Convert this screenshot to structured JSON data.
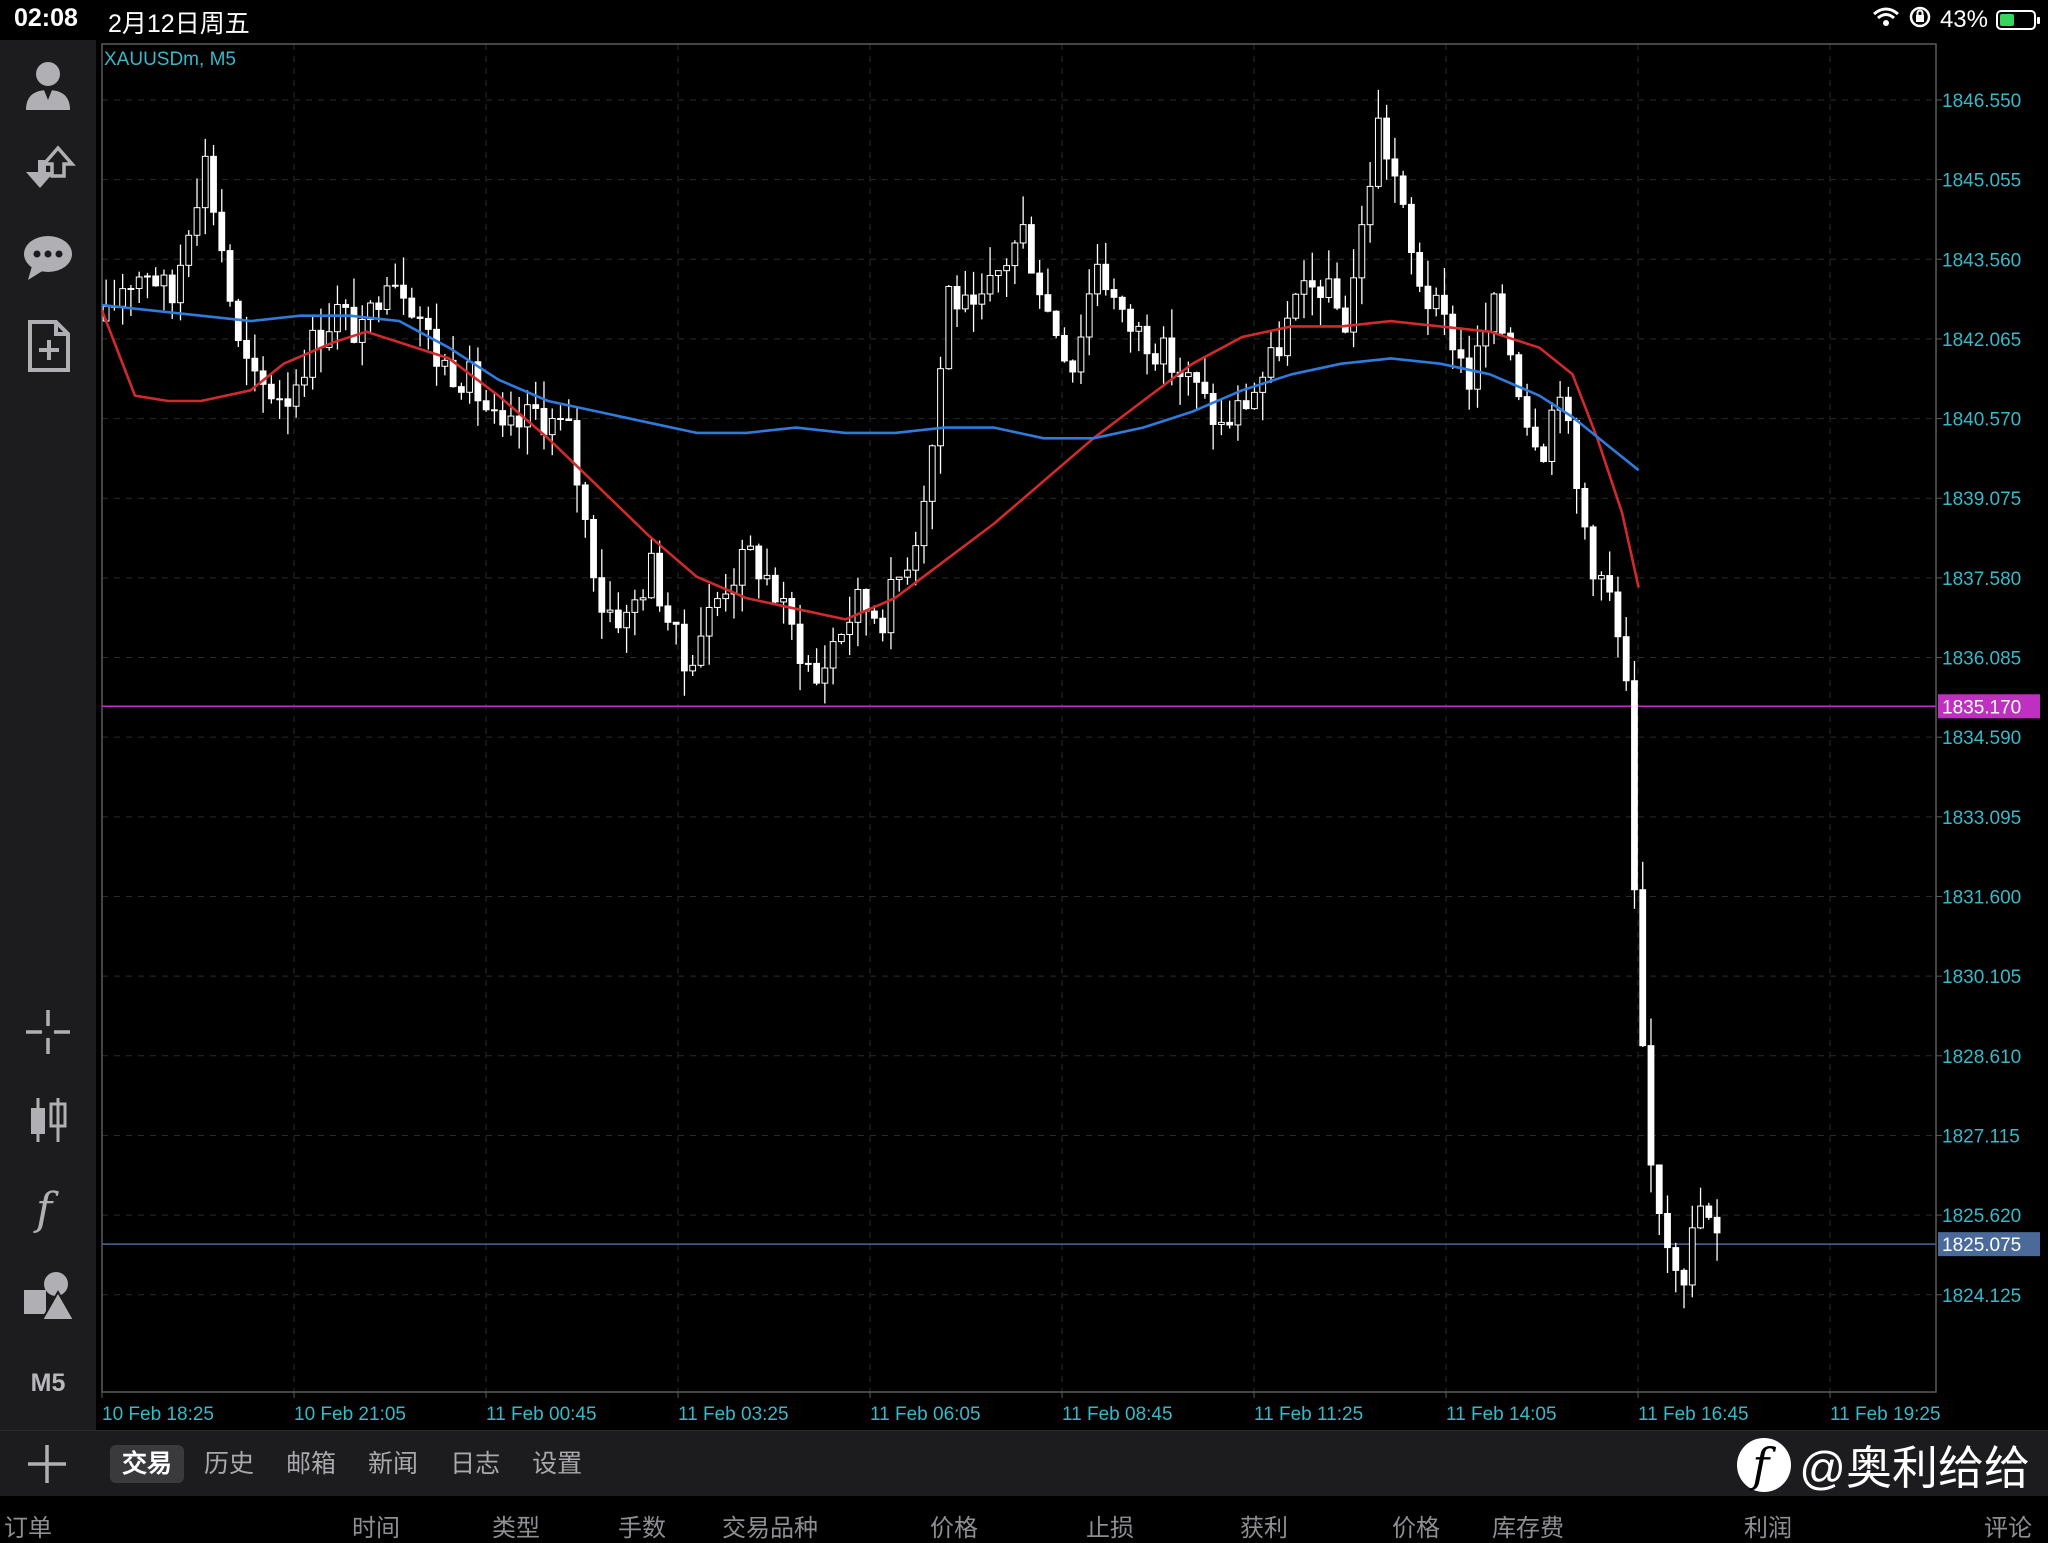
{
  "status_bar": {
    "time": "02:08",
    "date": "2月12日周五",
    "battery": "43%",
    "battery_level": 0.43
  },
  "toolbar": {
    "items": [
      "account-icon",
      "trade-icon",
      "chat-icon",
      "new-order-icon",
      "crosshair-icon",
      "candlestick-icon",
      "indicators-icon",
      "objects-icon"
    ],
    "timeframe": "M5"
  },
  "chart": {
    "symbol_label": "XAUUSDm, M5",
    "colors": {
      "background": "#000000",
      "candles": "#ffffff",
      "ma_red": "#d12a2a",
      "ma_blue": "#2f7bdc",
      "axis_text": "#38b8c8",
      "level_line": "#c030c0",
      "bid_line": "#4a6a9a",
      "grid": "#2a2a2a"
    },
    "y_ticks": [
      "1846.550",
      "1845.055",
      "1843.560",
      "1842.065",
      "1840.570",
      "1839.075",
      "1837.580",
      "1836.085",
      "1834.590",
      "1833.095",
      "1831.600",
      "1830.105",
      "1828.610",
      "1827.115",
      "1825.620",
      "1824.125"
    ],
    "x_ticks": [
      "10 Feb 18:25",
      "10 Feb 21:05",
      "11 Feb 00:45",
      "11 Feb 03:25",
      "11 Feb 06:05",
      "11 Feb 08:45",
      "11 Feb 11:25",
      "11 Feb 14:05",
      "11 Feb 16:45",
      "11 Feb 19:25"
    ],
    "level_price": "1835.170",
    "bid_price": "1825.075"
  },
  "chart_data": {
    "type": "candlestick",
    "symbol": "XAUUSDm",
    "timeframe": "M5",
    "ylim": [
      1822.3,
      1847.6
    ],
    "x_labels": [
      "10 Feb 18:25",
      "10 Feb 21:05",
      "11 Feb 00:45",
      "11 Feb 03:25",
      "11 Feb 06:05",
      "11 Feb 08:45",
      "11 Feb 11:25",
      "11 Feb 14:05",
      "11 Feb 16:45",
      "11 Feb 19:25"
    ],
    "close_path": [
      [
        0,
        1842.4
      ],
      [
        2,
        1843.1
      ],
      [
        5,
        1843.4
      ],
      [
        8,
        1842.8
      ],
      [
        10,
        1844.3
      ],
      [
        12,
        1845.4
      ],
      [
        14,
        1843.8
      ],
      [
        16,
        1841.9
      ],
      [
        18,
        1841.2
      ],
      [
        22,
        1841.0
      ],
      [
        25,
        1842.0
      ],
      [
        28,
        1842.6
      ],
      [
        31,
        1842.1
      ],
      [
        34,
        1843.4
      ],
      [
        36,
        1843.1
      ],
      [
        38,
        1842.5
      ],
      [
        40,
        1841.7
      ],
      [
        44,
        1841.3
      ],
      [
        48,
        1840.2
      ],
      [
        52,
        1840.7
      ],
      [
        56,
        1840.3
      ],
      [
        58,
        1838.6
      ],
      [
        60,
        1837.1
      ],
      [
        63,
        1836.8
      ],
      [
        66,
        1837.8
      ],
      [
        70,
        1835.9
      ],
      [
        72,
        1836.6
      ],
      [
        75,
        1837.5
      ],
      [
        78,
        1838.0
      ],
      [
        80,
        1837.6
      ],
      [
        83,
        1836.6
      ],
      [
        86,
        1835.6
      ],
      [
        88,
        1836.4
      ],
      [
        91,
        1837.1
      ],
      [
        94,
        1836.9
      ],
      [
        96,
        1837.6
      ],
      [
        98,
        1838.4
      ],
      [
        100,
        1840.1
      ],
      [
        102,
        1843.0
      ],
      [
        105,
        1842.4
      ],
      [
        108,
        1843.3
      ],
      [
        111,
        1844.1
      ],
      [
        114,
        1842.6
      ],
      [
        117,
        1841.6
      ],
      [
        120,
        1843.6
      ],
      [
        123,
        1842.4
      ],
      [
        126,
        1842.1
      ],
      [
        129,
        1841.6
      ],
      [
        132,
        1841.1
      ],
      [
        135,
        1840.4
      ],
      [
        138,
        1840.9
      ],
      [
        141,
        1841.6
      ],
      [
        144,
        1842.7
      ],
      [
        147,
        1843.1
      ],
      [
        150,
        1842.4
      ],
      [
        152,
        1844.1
      ],
      [
        154,
        1846.1
      ],
      [
        156,
        1845.1
      ],
      [
        158,
        1843.6
      ],
      [
        160,
        1842.8
      ],
      [
        163,
        1842.1
      ],
      [
        165,
        1841.3
      ],
      [
        168,
        1842.6
      ],
      [
        170,
        1841.9
      ],
      [
        172,
        1840.6
      ],
      [
        174,
        1840.1
      ],
      [
        176,
        1841.3
      ],
      [
        178,
        1839.2
      ],
      [
        180,
        1837.9
      ],
      [
        182,
        1837.2
      ],
      [
        183,
        1836.4
      ],
      [
        184,
        1835.4
      ],
      [
        185,
        1831.5
      ],
      [
        186,
        1828.5
      ],
      [
        187,
        1826.5
      ],
      [
        189,
        1825.2
      ],
      [
        191,
        1824.6
      ],
      [
        193,
        1825.8
      ],
      [
        195,
        1825.1
      ]
    ],
    "series": [
      {
        "name": "MA red",
        "points": [
          [
            0,
            1842.6
          ],
          [
            4,
            1841.0
          ],
          [
            8,
            1840.9
          ],
          [
            12,
            1840.9
          ],
          [
            18,
            1841.1
          ],
          [
            22,
            1841.6
          ],
          [
            28,
            1842.0
          ],
          [
            32,
            1842.2
          ],
          [
            36,
            1842.0
          ],
          [
            42,
            1841.7
          ],
          [
            48,
            1841.0
          ],
          [
            54,
            1840.2
          ],
          [
            60,
            1839.3
          ],
          [
            66,
            1838.4
          ],
          [
            72,
            1837.6
          ],
          [
            78,
            1837.2
          ],
          [
            84,
            1837.0
          ],
          [
            90,
            1836.8
          ],
          [
            96,
            1837.2
          ],
          [
            102,
            1837.9
          ],
          [
            108,
            1838.6
          ],
          [
            114,
            1839.4
          ],
          [
            120,
            1840.2
          ],
          [
            126,
            1840.9
          ],
          [
            132,
            1841.6
          ],
          [
            138,
            1842.1
          ],
          [
            144,
            1842.3
          ],
          [
            150,
            1842.3
          ],
          [
            156,
            1842.4
          ],
          [
            162,
            1842.3
          ],
          [
            168,
            1842.2
          ],
          [
            174,
            1841.9
          ],
          [
            178,
            1841.4
          ],
          [
            181,
            1840.2
          ],
          [
            184,
            1838.8
          ],
          [
            186,
            1837.4
          ]
        ]
      },
      {
        "name": "MA blue",
        "points": [
          [
            0,
            1842.7
          ],
          [
            6,
            1842.6
          ],
          [
            12,
            1842.5
          ],
          [
            18,
            1842.4
          ],
          [
            24,
            1842.5
          ],
          [
            30,
            1842.5
          ],
          [
            36,
            1842.4
          ],
          [
            42,
            1841.9
          ],
          [
            48,
            1841.3
          ],
          [
            54,
            1840.9
          ],
          [
            60,
            1840.7
          ],
          [
            66,
            1840.5
          ],
          [
            72,
            1840.3
          ],
          [
            78,
            1840.3
          ],
          [
            84,
            1840.4
          ],
          [
            90,
            1840.3
          ],
          [
            96,
            1840.3
          ],
          [
            102,
            1840.4
          ],
          [
            108,
            1840.4
          ],
          [
            114,
            1840.2
          ],
          [
            120,
            1840.2
          ],
          [
            126,
            1840.4
          ],
          [
            132,
            1840.7
          ],
          [
            138,
            1841.1
          ],
          [
            144,
            1841.4
          ],
          [
            150,
            1841.6
          ],
          [
            156,
            1841.7
          ],
          [
            162,
            1841.6
          ],
          [
            168,
            1841.4
          ],
          [
            174,
            1841.0
          ],
          [
            178,
            1840.6
          ],
          [
            182,
            1840.1
          ],
          [
            186,
            1839.6
          ]
        ]
      }
    ],
    "horizontal_lines": [
      1835.17,
      1825.075
    ]
  },
  "bottom_tabs": {
    "tabs": [
      "交易",
      "历史",
      "邮箱",
      "新闻",
      "日志",
      "设置"
    ],
    "active_index": 0
  },
  "watermark": {
    "text": "@奥利给给"
  },
  "columns": [
    "订单",
    "时间",
    "类型",
    "手数",
    "交易品种",
    "价格",
    "止损",
    "获利",
    "价格",
    "库存费",
    "利润",
    "评论"
  ]
}
